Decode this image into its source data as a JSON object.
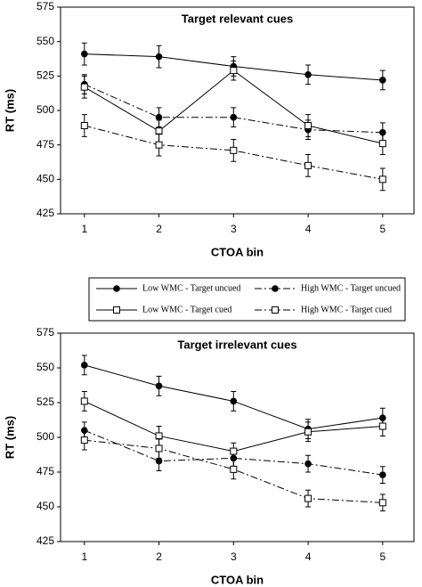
{
  "chart_data": [
    {
      "type": "line",
      "title": "Target relevant cues",
      "x_label": "CTOA bin",
      "y_label": "RT (ms)",
      "x": [
        1,
        2,
        3,
        4,
        5
      ],
      "xlim": [
        0.68,
        5.42
      ],
      "xticks": [
        1,
        2,
        3,
        4,
        5
      ],
      "ylim": [
        425,
        575
      ],
      "yticks": [
        425,
        450,
        475,
        500,
        525,
        550,
        575
      ],
      "series": [
        {
          "name": "Low WMC - Target uncued",
          "color": "#000000",
          "line_style": "solid",
          "marker": "filled-circle",
          "values": [
            541,
            539,
            532,
            526,
            522
          ],
          "errors": [
            8,
            8,
            7,
            7,
            7
          ]
        },
        {
          "name": "High WMC - Target uncued",
          "color": "#000000",
          "line_style": "dash-dot",
          "marker": "filled-circle",
          "values": [
            519,
            495,
            495,
            486,
            484
          ],
          "errors": [
            7,
            7,
            7,
            7,
            7
          ]
        },
        {
          "name": "Low WMC - Target cued",
          "color": "#000000",
          "line_style": "solid",
          "marker": "open-square",
          "values": [
            517,
            485,
            529,
            489,
            476
          ],
          "errors": [
            8,
            8,
            7,
            8,
            8
          ]
        },
        {
          "name": "High WMC - Target cued",
          "color": "#000000",
          "line_style": "dash-dot",
          "marker": "open-square",
          "values": [
            489,
            475,
            471,
            460,
            450
          ],
          "errors": [
            8,
            8,
            8,
            8,
            8
          ]
        }
      ]
    },
    {
      "type": "line",
      "title": "Target irrelevant cues",
      "x_label": "CTOA bin",
      "y_label": "RT (ms)",
      "x": [
        1,
        2,
        3,
        4,
        5
      ],
      "xlim": [
        0.68,
        5.42
      ],
      "xticks": [
        1,
        2,
        3,
        4,
        5
      ],
      "ylim": [
        425,
        575
      ],
      "yticks": [
        425,
        450,
        475,
        500,
        525,
        550,
        575
      ],
      "series": [
        {
          "color": "#000000",
          "line_style": "solid",
          "marker": "filled-circle",
          "values": [
            552,
            537,
            526,
            506,
            514
          ],
          "errors": [
            7,
            7,
            7,
            7,
            7
          ]
        },
        {
          "color": "#000000",
          "line_style": "dash-dot",
          "marker": "filled-circle",
          "values": [
            505,
            483,
            485,
            481,
            473
          ],
          "errors": [
            6,
            7,
            6,
            6,
            6
          ]
        },
        {
          "color": "#000000",
          "line_style": "solid",
          "marker": "open-square",
          "values": [
            526,
            501,
            490,
            504,
            508
          ],
          "errors": [
            7,
            7,
            6,
            7,
            7
          ]
        },
        {
          "color": "#000000",
          "line_style": "dash-dot",
          "marker": "open-square",
          "values": [
            498,
            492,
            477,
            456,
            453
          ],
          "errors": [
            7,
            7,
            7,
            6,
            6
          ]
        }
      ]
    }
  ]
}
